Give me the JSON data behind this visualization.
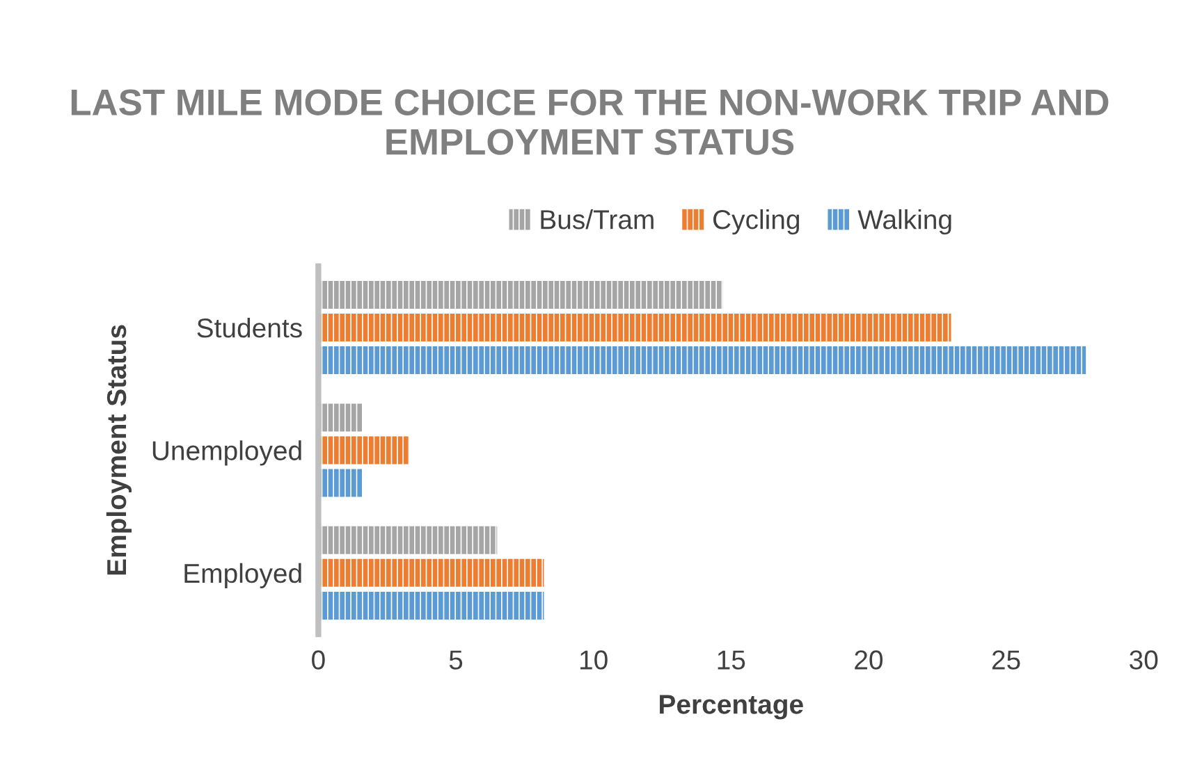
{
  "chart_data": {
    "type": "bar",
    "orientation": "horizontal",
    "title": "LAST MILE MODE CHOICE FOR THE NON-WORK TRIP AND EMPLOYMENT STATUS",
    "categories": [
      "Students",
      "Unemployed",
      "Employed"
    ],
    "series": [
      {
        "name": "Bus/Tram",
        "color": "#a5a5a5",
        "values": [
          14.7,
          1.6,
          6.5
        ]
      },
      {
        "name": "Cycling",
        "color": "#ed7d31",
        "values": [
          23.0,
          3.3,
          8.2
        ]
      },
      {
        "name": "Walking",
        "color": "#5b9bd5",
        "values": [
          27.9,
          1.6,
          8.2
        ]
      }
    ],
    "xlabel": "Percentage",
    "ylabel": "Employment Status",
    "xlim": [
      0,
      30
    ],
    "xticks": [
      0,
      5,
      10,
      15,
      20,
      25,
      30
    ],
    "grid": false,
    "legend": "top"
  }
}
